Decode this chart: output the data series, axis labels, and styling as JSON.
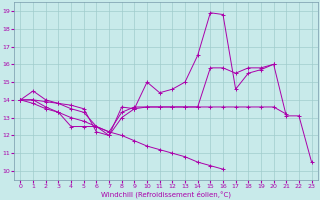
{
  "xlabel": "Windchill (Refroidissement éolien,°C)",
  "xlim": [
    -0.5,
    23.5
  ],
  "ylim": [
    9.5,
    19.5
  ],
  "yticks": [
    10,
    11,
    12,
    13,
    14,
    15,
    16,
    17,
    18,
    19
  ],
  "xticks": [
    0,
    1,
    2,
    3,
    4,
    5,
    6,
    7,
    8,
    9,
    10,
    11,
    12,
    13,
    14,
    15,
    16,
    17,
    18,
    19,
    20,
    21,
    22,
    23
  ],
  "bg_color": "#c8eaea",
  "line_color": "#aa00aa",
  "grid_color": "#a0cccc",
  "curves": [
    {
      "x": [
        0,
        1,
        2,
        3,
        4,
        5,
        6,
        7,
        8,
        9,
        10,
        11,
        12,
        13,
        14,
        15,
        16,
        17,
        18,
        19,
        20,
        21,
        22,
        23
      ],
      "y": [
        14.0,
        14.5,
        14.0,
        13.8,
        13.7,
        13.5,
        12.2,
        12.0,
        13.6,
        13.5,
        15.0,
        14.4,
        14.6,
        15.0,
        16.5,
        18.9,
        18.8,
        14.6,
        15.5,
        15.7,
        16.0,
        13.1,
        13.1,
        10.5
      ]
    },
    {
      "x": [
        0,
        1,
        2,
        3,
        4,
        5,
        6,
        7,
        8,
        9,
        10,
        11,
        12,
        13,
        14,
        15,
        16,
        17,
        18,
        19,
        20
      ],
      "y": [
        14.0,
        14.0,
        13.9,
        13.8,
        13.5,
        13.3,
        12.5,
        12.0,
        13.0,
        13.5,
        13.6,
        13.6,
        13.6,
        13.6,
        13.6,
        15.8,
        15.8,
        15.5,
        15.8,
        15.8,
        16.0
      ]
    },
    {
      "x": [
        0,
        1,
        2,
        3,
        4,
        5,
        6,
        7,
        8,
        9,
        10,
        11,
        12,
        13,
        14,
        15,
        16,
        17,
        18,
        19,
        20,
        21
      ],
      "y": [
        14.0,
        14.0,
        13.6,
        13.3,
        12.5,
        12.5,
        12.5,
        12.2,
        13.3,
        13.6,
        13.6,
        13.6,
        13.6,
        13.6,
        13.6,
        13.6,
        13.6,
        13.6,
        13.6,
        13.6,
        13.6,
        13.2
      ]
    },
    {
      "x": [
        0,
        1,
        2,
        3,
        4,
        5,
        6,
        7,
        8,
        9,
        10,
        11,
        12,
        13,
        14,
        15,
        16,
        17,
        18,
        19,
        20,
        21,
        22,
        23
      ],
      "y": [
        14.0,
        13.8,
        13.5,
        13.3,
        13.0,
        12.8,
        12.5,
        12.2,
        12.0,
        11.7,
        11.4,
        11.2,
        11.0,
        10.8,
        10.5,
        10.3,
        10.1,
        null,
        null,
        null,
        null,
        null,
        null,
        null
      ]
    }
  ]
}
